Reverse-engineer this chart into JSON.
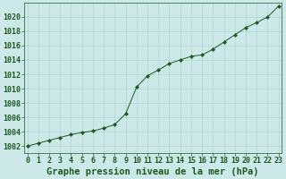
{
  "x": [
    0,
    1,
    2,
    3,
    4,
    5,
    6,
    7,
    8,
    9,
    10,
    11,
    12,
    13,
    14,
    15,
    16,
    17,
    18,
    19,
    20,
    21,
    22,
    23
  ],
  "y": [
    1002.0,
    1002.4,
    1002.8,
    1003.2,
    1003.6,
    1003.9,
    1004.1,
    1004.5,
    1005.0,
    1006.5,
    1010.2,
    1011.8,
    1012.6,
    1013.5,
    1014.0,
    1014.5,
    1014.7,
    1015.5,
    1016.5,
    1017.5,
    1018.5,
    1019.2,
    1020.0,
    1021.5
  ],
  "line_color": "#1a5c1a",
  "marker_color": "#1a5c1a",
  "bg_color": "#cce8e8",
  "grid_color": "#b0d4d4",
  "xlabel": "Graphe pression niveau de la mer (hPa)",
  "xlabel_color": "#1a5c1a",
  "tick_color": "#1a5c1a",
  "spine_color": "#1a5c1a",
  "ylim": [
    1001.0,
    1022.0
  ],
  "xlim": [
    -0.3,
    23.3
  ],
  "yticks": [
    1002,
    1004,
    1006,
    1008,
    1010,
    1012,
    1014,
    1016,
    1018,
    1020
  ],
  "xticks": [
    0,
    1,
    2,
    3,
    4,
    5,
    6,
    7,
    8,
    9,
    10,
    11,
    12,
    13,
    14,
    15,
    16,
    17,
    18,
    19,
    20,
    21,
    22,
    23
  ],
  "xlabel_fontsize": 7.5,
  "tick_fontsize": 6.0
}
